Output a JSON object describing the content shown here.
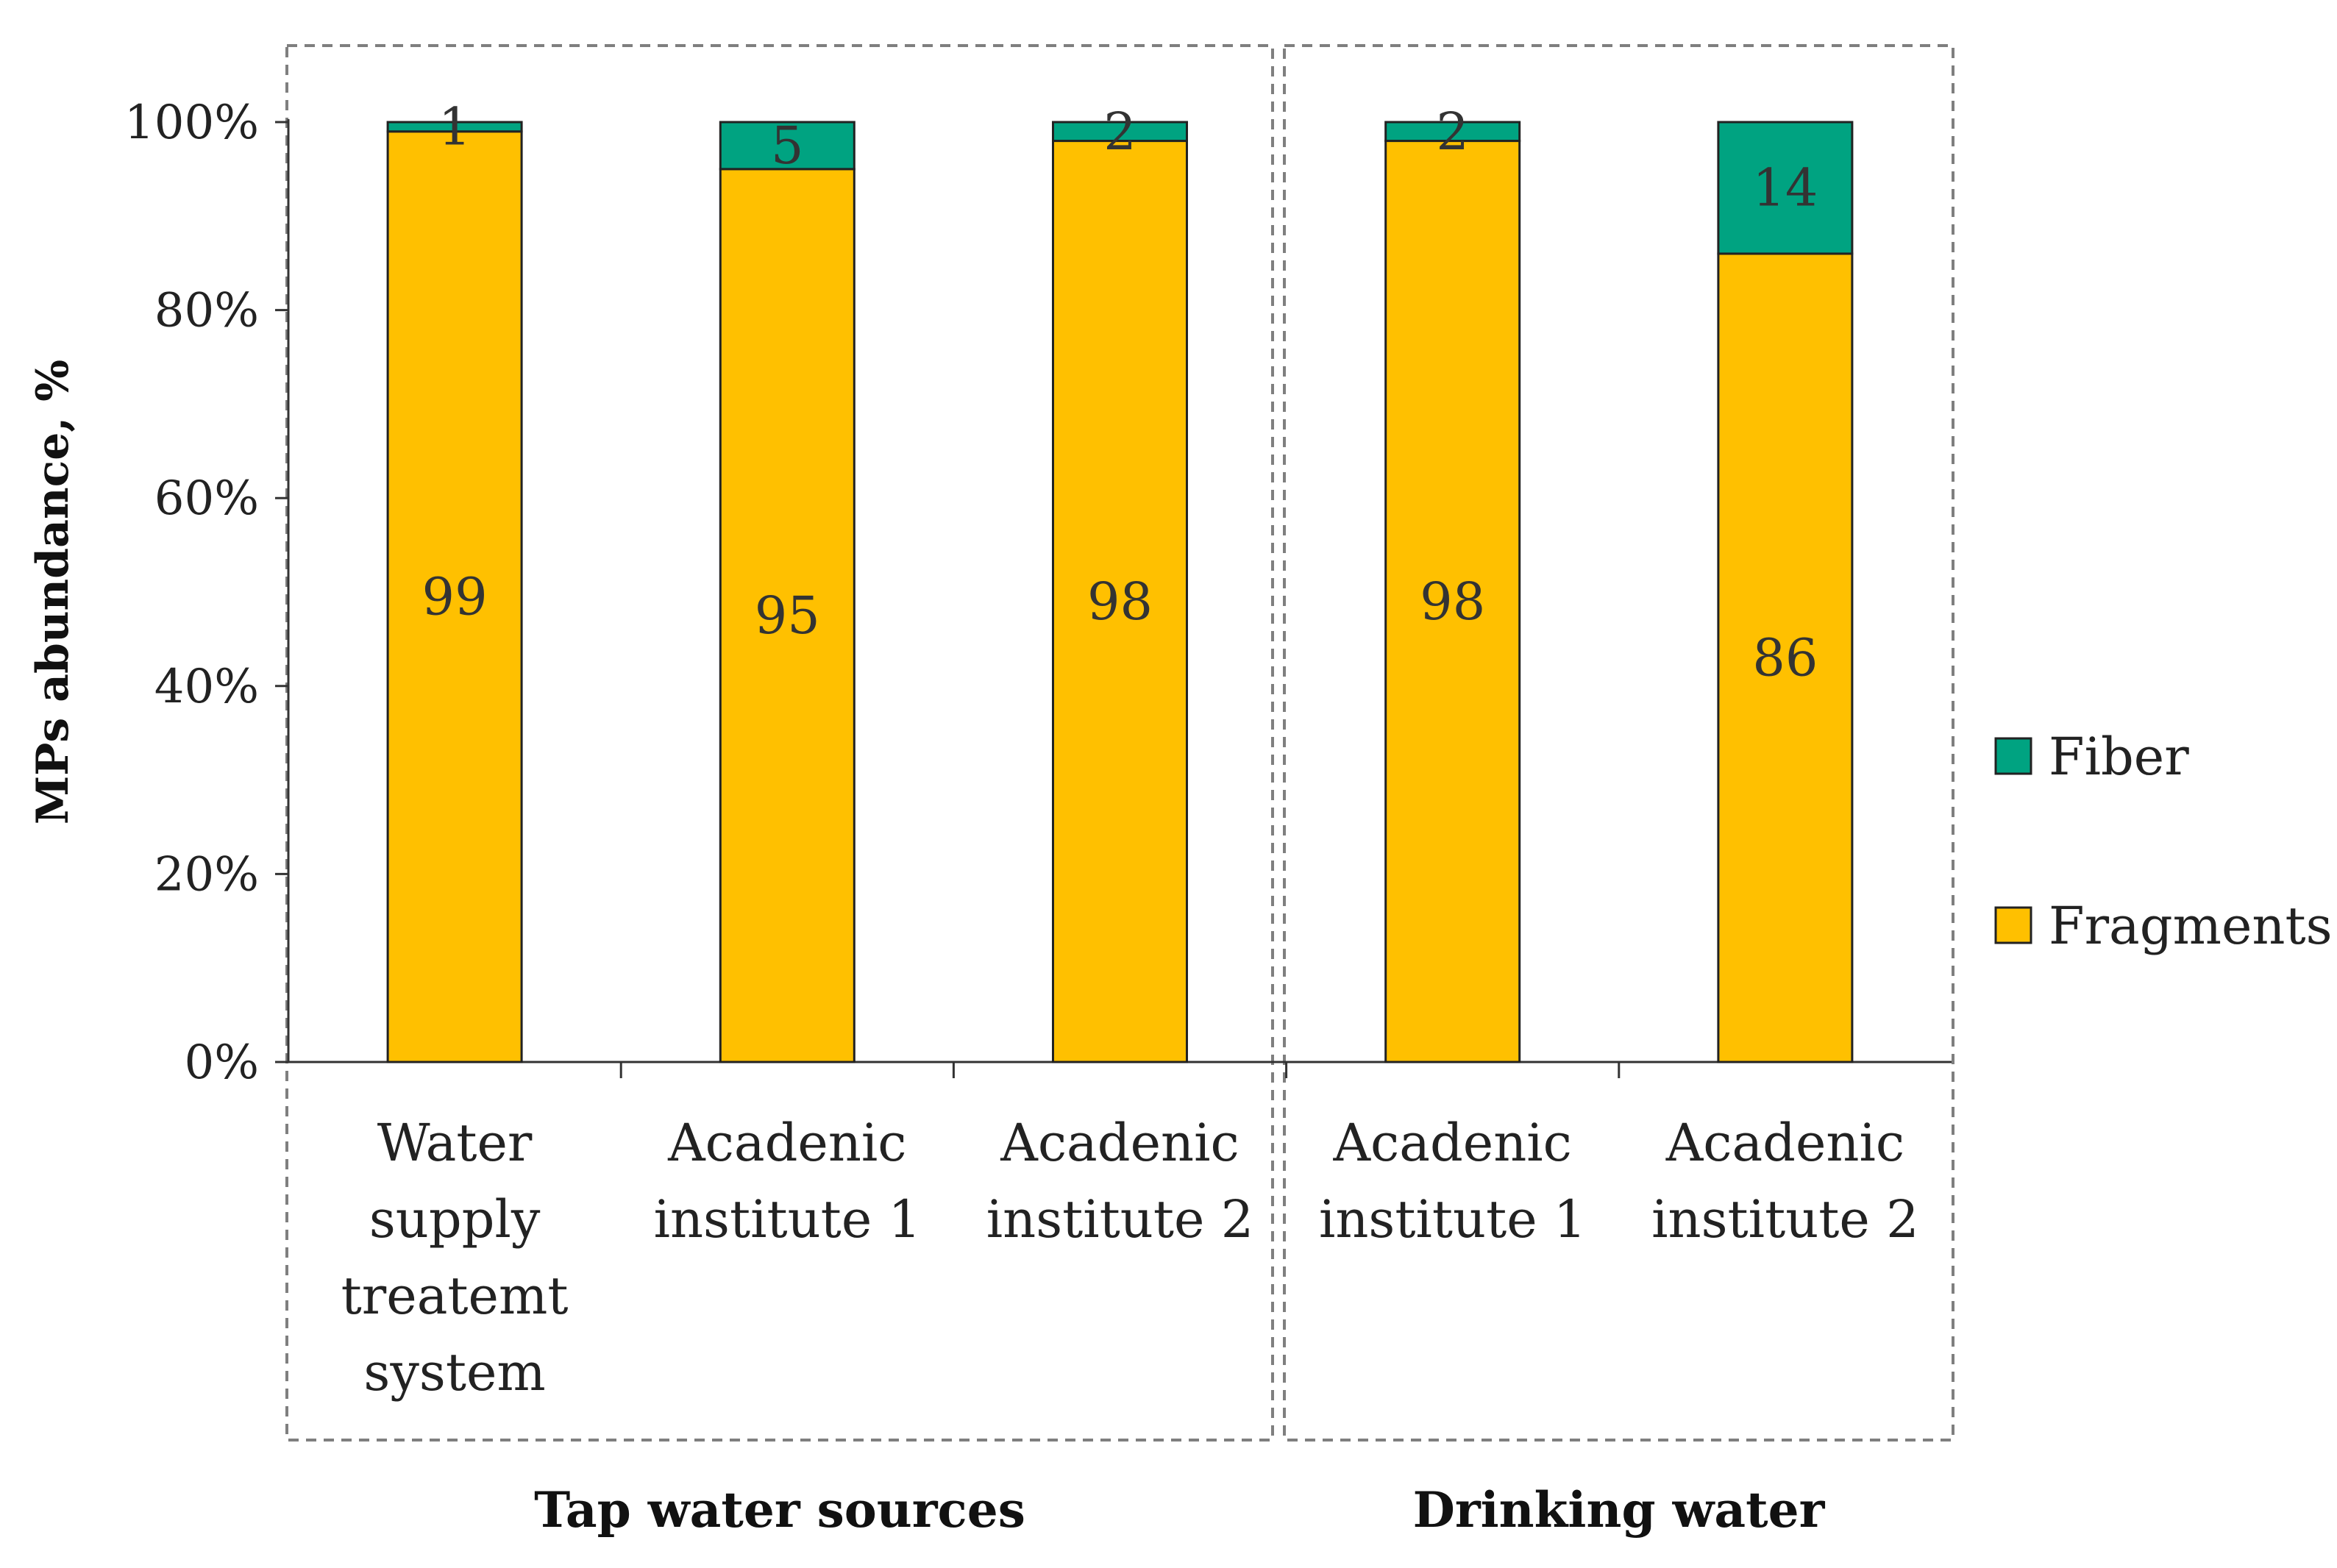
{
  "chart_data": {
    "type": "bar",
    "stacked": true,
    "title": "",
    "xlabel": "",
    "ylabel": "MPs abundance, %",
    "ylim": [
      0,
      100
    ],
    "yticks": [
      "0%",
      "20%",
      "40%",
      "60%",
      "80%",
      "100%"
    ],
    "ytick_values": [
      0,
      20,
      40,
      60,
      80,
      100
    ],
    "categories": [
      [
        "Water",
        "supply",
        "treatemt",
        "system"
      ],
      [
        "Acadenic",
        "institute 1"
      ],
      [
        "Acadenic",
        "institute 2"
      ],
      [
        "Acadenic",
        "institute 1"
      ],
      [
        "Acadenic",
        "institute 2"
      ]
    ],
    "groups": [
      {
        "name": "Tap water sources",
        "start": 0,
        "end": 2
      },
      {
        "name": "Drinking water",
        "start": 3,
        "end": 4
      }
    ],
    "series": [
      {
        "name": "Fragments",
        "color": "#FFC000",
        "values": [
          99,
          95,
          98,
          98,
          86
        ],
        "labels": [
          "99",
          "95",
          "98",
          "98",
          "86"
        ]
      },
      {
        "name": "Fiber",
        "color": "#00A381",
        "values": [
          1,
          5,
          2,
          2,
          14
        ],
        "labels": [
          "1",
          "5",
          "2",
          "2",
          "14"
        ]
      }
    ],
    "legend": {
      "position": "right",
      "order": [
        "Fiber",
        "Fragments"
      ]
    }
  }
}
